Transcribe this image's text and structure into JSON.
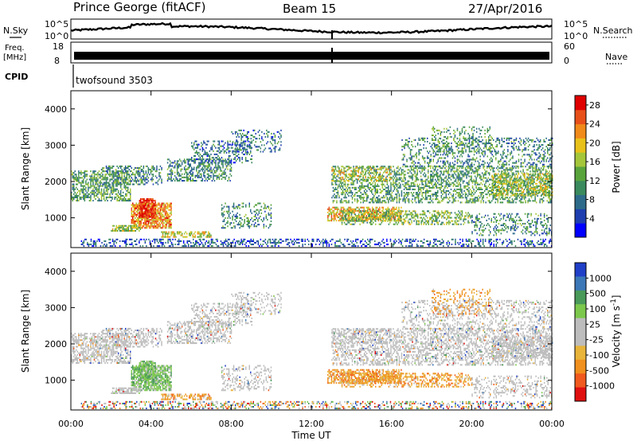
{
  "header": {
    "station": "Prince George (fitACF)",
    "beam": "Beam 15",
    "date": "27/Apr/2016"
  },
  "top_panels": {
    "nsky_label": "N.Sky",
    "nsearch_label": "N.Search",
    "noise_ticks": [
      "10^5",
      "10^0"
    ],
    "freq_label": "Freq.",
    "freq_unit": "[MHz]",
    "freq_ticks": [
      "18",
      "8"
    ],
    "nave_label": "Nave",
    "nave_ticks": [
      "60",
      "0"
    ],
    "cpid_label": "CPID",
    "cpid_value": "twofsound 3503"
  },
  "chart_data": [
    {
      "type": "heatmap",
      "name": "power",
      "ylabel": "Slant Range [km]",
      "y_ticks": [
        "4000",
        "3000",
        "2000",
        "1000"
      ],
      "ylim": [
        180,
        4500
      ],
      "colorbar_label": "Power [dB]",
      "colorbar_ticks": [
        "28",
        "24",
        "20",
        "16",
        "12",
        "8",
        "4"
      ],
      "colorbar_range": [
        0,
        30
      ],
      "colors": [
        "#0000ff",
        "#1f3fb0",
        "#2e6b8a",
        "#3a8a5e",
        "#5aa43c",
        "#a5c63a",
        "#e8c21a",
        "#f08a1a",
        "#e8501a",
        "#e00000"
      ]
    },
    {
      "type": "heatmap",
      "name": "velocity",
      "ylabel": "Slant Range [km]",
      "y_ticks": [
        "4000",
        "3000",
        "2000",
        "1000"
      ],
      "ylim": [
        180,
        4500
      ],
      "colorbar_label": "Velocity [m s^-1]",
      "colorbar_ticks": [
        "1000",
        "500",
        "100",
        "25",
        "-25",
        "-100",
        "-500",
        "-1000"
      ],
      "colors": [
        "#2040c8",
        "#3c78b8",
        "#4a9a5a",
        "#7cc84c",
        "#bdbdbd",
        "#bdbdbd",
        "#e8b43a",
        "#f0901e",
        "#f05a1e",
        "#e01010"
      ]
    }
  ],
  "x_axis": {
    "ticks": [
      "00:00",
      "04:00",
      "08:00",
      "12:00",
      "16:00",
      "20:00",
      "00:00"
    ],
    "label": "Time UT",
    "range_hours": [
      0,
      24
    ]
  }
}
